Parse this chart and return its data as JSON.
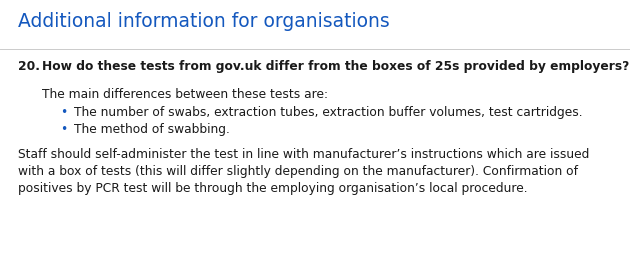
{
  "background_color": "#ffffff",
  "title": "Additional information for organisations",
  "title_color": "#1458be",
  "title_fontsize": 13.5,
  "question_number": "20.",
  "question_bold": "How do these tests from gov.uk differ from the boxes of 25s provided by employers?",
  "question_color": "#1a1a1a",
  "question_fontsize": 8.8,
  "intro_text": "The main differences between these tests are:",
  "body_fontsize": 8.8,
  "bullet_points": [
    "The number of swabs, extraction tubes, extraction buffer volumes, test cartridges.",
    "The method of swabbing."
  ],
  "bullet_color": "#1458be",
  "paragraph_text": "Staff should self-administer the test in line with manufacturer’s instructions which are issued with a box of tests (this will differ slightly depending on the manufacturer). Confirmation of positives by PCR test will be through the employing organisation’s local procedure.",
  "text_color": "#1a1a1a",
  "border_color": "#cccccc",
  "fig_width": 6.3,
  "fig_height": 2.73,
  "dpi": 100
}
